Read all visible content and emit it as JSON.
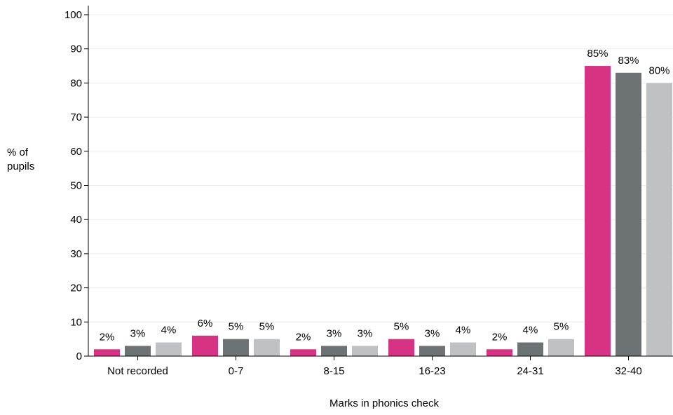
{
  "chart_data": {
    "type": "bar",
    "title": "",
    "xlabel": "Marks in phonics check",
    "ylabel": [
      "% of",
      "pupils"
    ],
    "categories": [
      "Not recorded",
      "0-7",
      "8-15",
      "16-23",
      "24-31",
      "32-40"
    ],
    "series": [
      {
        "color": "#d63384",
        "values": [
          2,
          6,
          2,
          5,
          2,
          85
        ],
        "labels": [
          "2%",
          "6%",
          "2%",
          "5%",
          "2%",
          "85%"
        ]
      },
      {
        "color": "#6d7275",
        "values": [
          3,
          5,
          3,
          3,
          4,
          83
        ],
        "labels": [
          "3%",
          "5%",
          "3%",
          "3%",
          "4%",
          "83%"
        ]
      },
      {
        "color": "#c0c1c3",
        "values": [
          4,
          5,
          3,
          4,
          5,
          80
        ],
        "labels": [
          "4%",
          "5%",
          "3%",
          "4%",
          "5%",
          "80%"
        ]
      }
    ],
    "ylim": [
      0,
      100
    ],
    "yticks": [
      "0",
      "10",
      "20",
      "30",
      "40",
      "50",
      "60",
      "70",
      "80",
      "90",
      "100"
    ],
    "grid": true,
    "legend": "none"
  }
}
